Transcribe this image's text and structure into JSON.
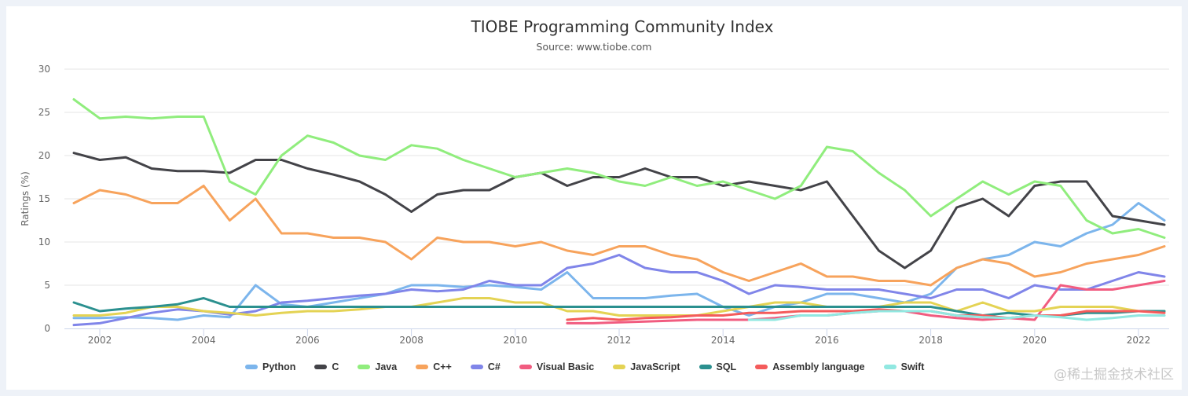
{
  "chart_data": {
    "type": "line",
    "title": "TIOBE Programming Community Index",
    "subtitle": "Source: www.tiobe.com",
    "ylabel": "Ratings (%)",
    "xlabel": "",
    "ylim": [
      0,
      30
    ],
    "yticks": [
      "0",
      "5",
      "10",
      "15",
      "20",
      "25",
      "30"
    ],
    "xticks": [
      "2002",
      "2004",
      "2006",
      "2008",
      "2010",
      "2012",
      "2014",
      "2016",
      "2018",
      "2020",
      "2022"
    ],
    "grid": true,
    "legend": "bottom",
    "x": [
      2001.5,
      2002,
      2002.5,
      2003,
      2003.5,
      2004,
      2004.5,
      2005,
      2005.5,
      2006,
      2006.5,
      2007,
      2007.5,
      2008,
      2008.5,
      2009,
      2009.5,
      2010,
      2010.5,
      2011,
      2011.5,
      2012,
      2012.5,
      2013,
      2013.5,
      2014,
      2014.5,
      2015,
      2015.5,
      2016,
      2016.5,
      2017,
      2017.5,
      2018,
      2018.5,
      2019,
      2019.5,
      2020,
      2020.5,
      2021,
      2021.5,
      2022,
      2022.5
    ],
    "series": [
      {
        "name": "Python",
        "color": "#7cb5ec",
        "values": [
          1.2,
          1.2,
          1.3,
          1.2,
          1.0,
          1.5,
          1.3,
          5,
          2.8,
          2.5,
          3,
          3.5,
          4,
          5,
          5,
          4.8,
          5,
          4.8,
          4.5,
          6.5,
          3.5,
          3.5,
          3.5,
          3.8,
          4,
          2.5,
          1.5,
          2.5,
          3,
          4,
          4,
          3.5,
          3,
          4,
          7,
          8,
          8.5,
          10,
          9.5,
          11,
          12,
          14.5,
          12.5
        ]
      },
      {
        "name": "C",
        "color": "#434348",
        "values": [
          20.3,
          19.5,
          19.8,
          18.5,
          18.2,
          18.2,
          18,
          19.5,
          19.5,
          18.5,
          17.8,
          17,
          15.5,
          13.5,
          15.5,
          16,
          16,
          17.5,
          18,
          16.5,
          17.5,
          17.5,
          18.5,
          17.5,
          17.5,
          16.5,
          17,
          16.5,
          16,
          17,
          13,
          9,
          7,
          9,
          14,
          15,
          13,
          16.5,
          17,
          17,
          13,
          12.5,
          12
        ]
      },
      {
        "name": "Java",
        "color": "#90ed7d",
        "values": [
          26.5,
          24.3,
          24.5,
          24.3,
          24.5,
          24.5,
          17,
          15.5,
          20,
          22.3,
          21.5,
          20,
          19.5,
          21.2,
          20.8,
          19.5,
          18.5,
          17.5,
          18,
          18.5,
          18,
          17,
          16.5,
          17.5,
          16.5,
          17,
          16,
          15,
          16.5,
          21,
          20.5,
          18,
          16,
          13,
          15,
          17,
          15.5,
          17,
          16.5,
          12.5,
          11,
          11.5,
          10.5
        ]
      },
      {
        "name": "C++",
        "color": "#f7a35c",
        "values": [
          14.5,
          16,
          15.5,
          14.5,
          14.5,
          16.5,
          12.5,
          15,
          11,
          11,
          10.5,
          10.5,
          10,
          8,
          10.5,
          10,
          10,
          9.5,
          10,
          9,
          8.5,
          9.5,
          9.5,
          8.5,
          8,
          6.5,
          5.5,
          6.5,
          7.5,
          6,
          6,
          5.5,
          5.5,
          5,
          7,
          8,
          7.5,
          6,
          6.5,
          7.5,
          8,
          8.5,
          9.5
        ]
      },
      {
        "name": "C#",
        "color": "#8085e9",
        "values": [
          0.4,
          0.6,
          1.2,
          1.8,
          2.2,
          2,
          1.6,
          2,
          3,
          3.2,
          3.5,
          3.8,
          4,
          4.5,
          4.3,
          4.5,
          5.5,
          5,
          5,
          7,
          7.5,
          8.5,
          7,
          6.5,
          6.5,
          5.5,
          4,
          5,
          4.8,
          4.5,
          4.5,
          4.5,
          4,
          3.5,
          4.5,
          4.5,
          3.5,
          5,
          4.5,
          4.5,
          5.5,
          6.5,
          6
        ]
      },
      {
        "name": "Visual Basic",
        "color": "#f15c80",
        "values": [
          null,
          null,
          null,
          null,
          null,
          null,
          null,
          null,
          null,
          null,
          null,
          null,
          null,
          null,
          null,
          null,
          null,
          null,
          null,
          0.6,
          0.6,
          0.7,
          0.8,
          0.9,
          1,
          1,
          1,
          1.2,
          1.5,
          1.5,
          1.8,
          2,
          2,
          1.5,
          1.2,
          1,
          1.2,
          1,
          5,
          4.5,
          4.5,
          5,
          5.5
        ]
      },
      {
        "name": "JavaScript",
        "color": "#e4d354",
        "values": [
          1.5,
          1.5,
          1.8,
          2.5,
          2.5,
          2,
          1.8,
          1.5,
          1.8,
          2,
          2,
          2.2,
          2.5,
          2.5,
          3,
          3.5,
          3.5,
          3,
          3,
          2,
          2,
          1.5,
          1.5,
          1.5,
          1.5,
          2,
          2.5,
          3,
          3,
          2.5,
          2.5,
          2.5,
          3,
          3,
          2,
          3,
          2,
          2,
          2.5,
          2.5,
          2.5,
          2,
          2
        ]
      },
      {
        "name": "SQL",
        "color": "#2b908f",
        "values": [
          3,
          2,
          2.3,
          2.5,
          2.8,
          3.5,
          2.5,
          2.5,
          2.5,
          2.5,
          2.5,
          2.5,
          2.5,
          2.5,
          2.5,
          2.5,
          2.5,
          2.5,
          2.5,
          2.5,
          2.5,
          2.5,
          2.5,
          2.5,
          2.5,
          2.5,
          2.5,
          2.5,
          2.5,
          2.5,
          2.5,
          2.5,
          2.5,
          2.5,
          2,
          1.5,
          1.8,
          1.5,
          1.5,
          1.8,
          1.8,
          2,
          2
        ]
      },
      {
        "name": "Assembly language",
        "color": "#f45b5b",
        "values": [
          null,
          null,
          null,
          null,
          null,
          null,
          null,
          null,
          null,
          null,
          null,
          null,
          null,
          null,
          null,
          null,
          null,
          null,
          null,
          1,
          1.2,
          1,
          1.2,
          1.3,
          1.5,
          1.5,
          1.8,
          1.8,
          2,
          2,
          2,
          2.2,
          2,
          2,
          1.5,
          1.5,
          1.2,
          1.5,
          1.5,
          2,
          2,
          2,
          1.8
        ]
      },
      {
        "name": "Swift",
        "color": "#91e8e1",
        "values": [
          null,
          null,
          null,
          null,
          null,
          null,
          null,
          null,
          null,
          null,
          null,
          null,
          null,
          null,
          null,
          null,
          null,
          null,
          null,
          null,
          null,
          null,
          null,
          null,
          null,
          null,
          1,
          1,
          1.5,
          1.5,
          1.8,
          2,
          2,
          2,
          1.5,
          1.3,
          1.2,
          1.5,
          1.3,
          1,
          1.2,
          1.5,
          1.5
        ]
      }
    ]
  },
  "watermark": "@稀土掘金技术社区"
}
